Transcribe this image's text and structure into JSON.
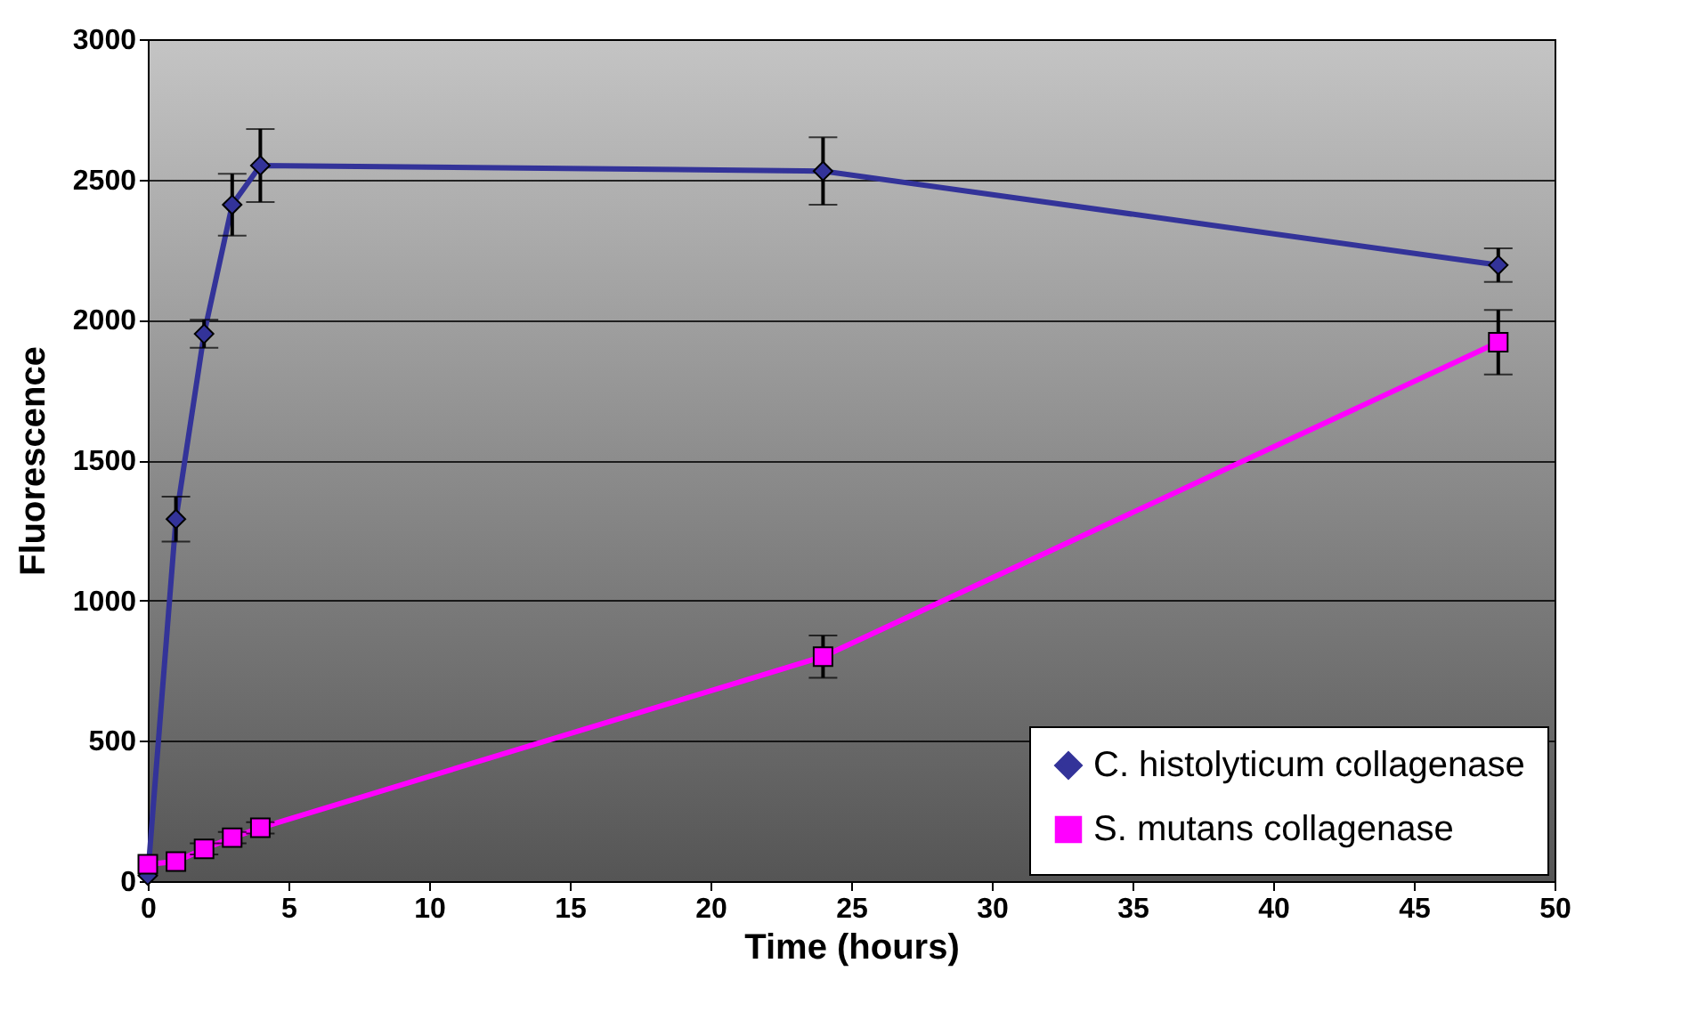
{
  "chart_data": {
    "type": "line",
    "xlabel": "Time (hours)",
    "ylabel": "Fluorescence",
    "xlim": [
      0,
      50
    ],
    "xticks": [
      0,
      5,
      10,
      15,
      20,
      25,
      30,
      35,
      40,
      45,
      50
    ],
    "ylim": [
      0,
      3000
    ],
    "yticks": [
      0,
      500,
      1000,
      1500,
      2000,
      2500,
      3000
    ],
    "grid": "y",
    "legend": "bottom right",
    "series": [
      {
        "name": "C. histolyticum collagenase",
        "color": "#333399",
        "marker": "diamond",
        "x": [
          0,
          1,
          2,
          3,
          4,
          24,
          48
        ],
        "values": [
          20,
          1290,
          1950,
          2410,
          2550,
          2530,
          2195
        ],
        "errors": [
          null,
          80,
          50,
          110,
          130,
          120,
          60
        ]
      },
      {
        "name": "S. mutans collagenase",
        "color": "#ff00ff",
        "marker": "square",
        "x": [
          0,
          1,
          2,
          3,
          4,
          24,
          48
        ],
        "values": [
          60,
          70,
          115,
          155,
          190,
          800,
          1920
        ],
        "errors": [
          null,
          null,
          20,
          20,
          20,
          75,
          115
        ]
      }
    ]
  }
}
